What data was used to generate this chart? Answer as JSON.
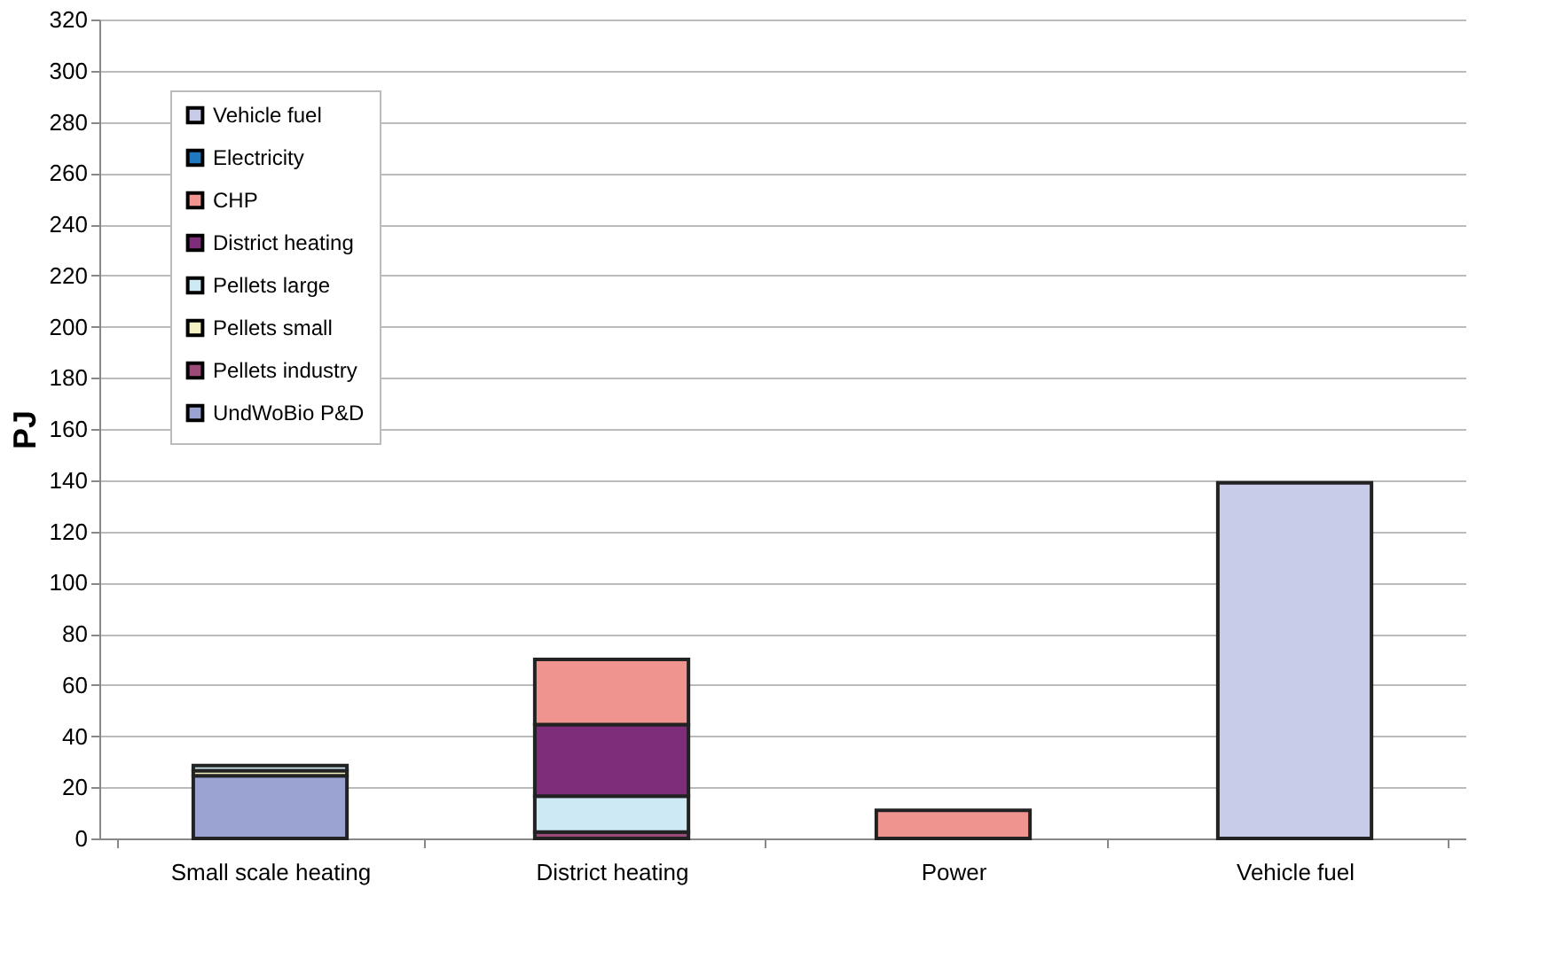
{
  "chart_data": {
    "type": "bar",
    "stacked": true,
    "ylabel": "PJ",
    "categories": [
      "Small scale heating",
      "District heating",
      "Power",
      "Vehicle fuel"
    ],
    "ylim": [
      0,
      320
    ],
    "yticks": [
      0,
      20,
      40,
      60,
      80,
      100,
      120,
      140,
      160,
      180,
      200,
      220,
      240,
      260,
      280,
      300,
      320
    ],
    "grid": "y",
    "legend": "top left",
    "series": [
      {
        "name": "UndWoBio P&D",
        "color": "#9aa3d2",
        "values": [
          24.5,
          null,
          null,
          null
        ]
      },
      {
        "name": "Pellets industry",
        "color": "#9c4a78",
        "values": [
          null,
          2.5,
          null,
          null
        ]
      },
      {
        "name": "Pellets small",
        "color": "#f4f2c4",
        "values": [
          2,
          null,
          null,
          null
        ]
      },
      {
        "name": "Pellets large",
        "color": "#cce9f4",
        "values": [
          2,
          14,
          null,
          null
        ]
      },
      {
        "name": "District heating",
        "color": "#7e2d7a",
        "values": [
          null,
          28,
          null,
          null
        ]
      },
      {
        "name": "CHP",
        "color": "#f09490",
        "values": [
          null,
          25.5,
          11,
          null
        ]
      },
      {
        "name": "Electricity",
        "color": "#1f78c0",
        "values": [
          null,
          null,
          null,
          null
        ]
      },
      {
        "name": "Vehicle fuel",
        "color": "#c8cce8",
        "values": [
          null,
          null,
          null,
          139
        ]
      }
    ]
  }
}
